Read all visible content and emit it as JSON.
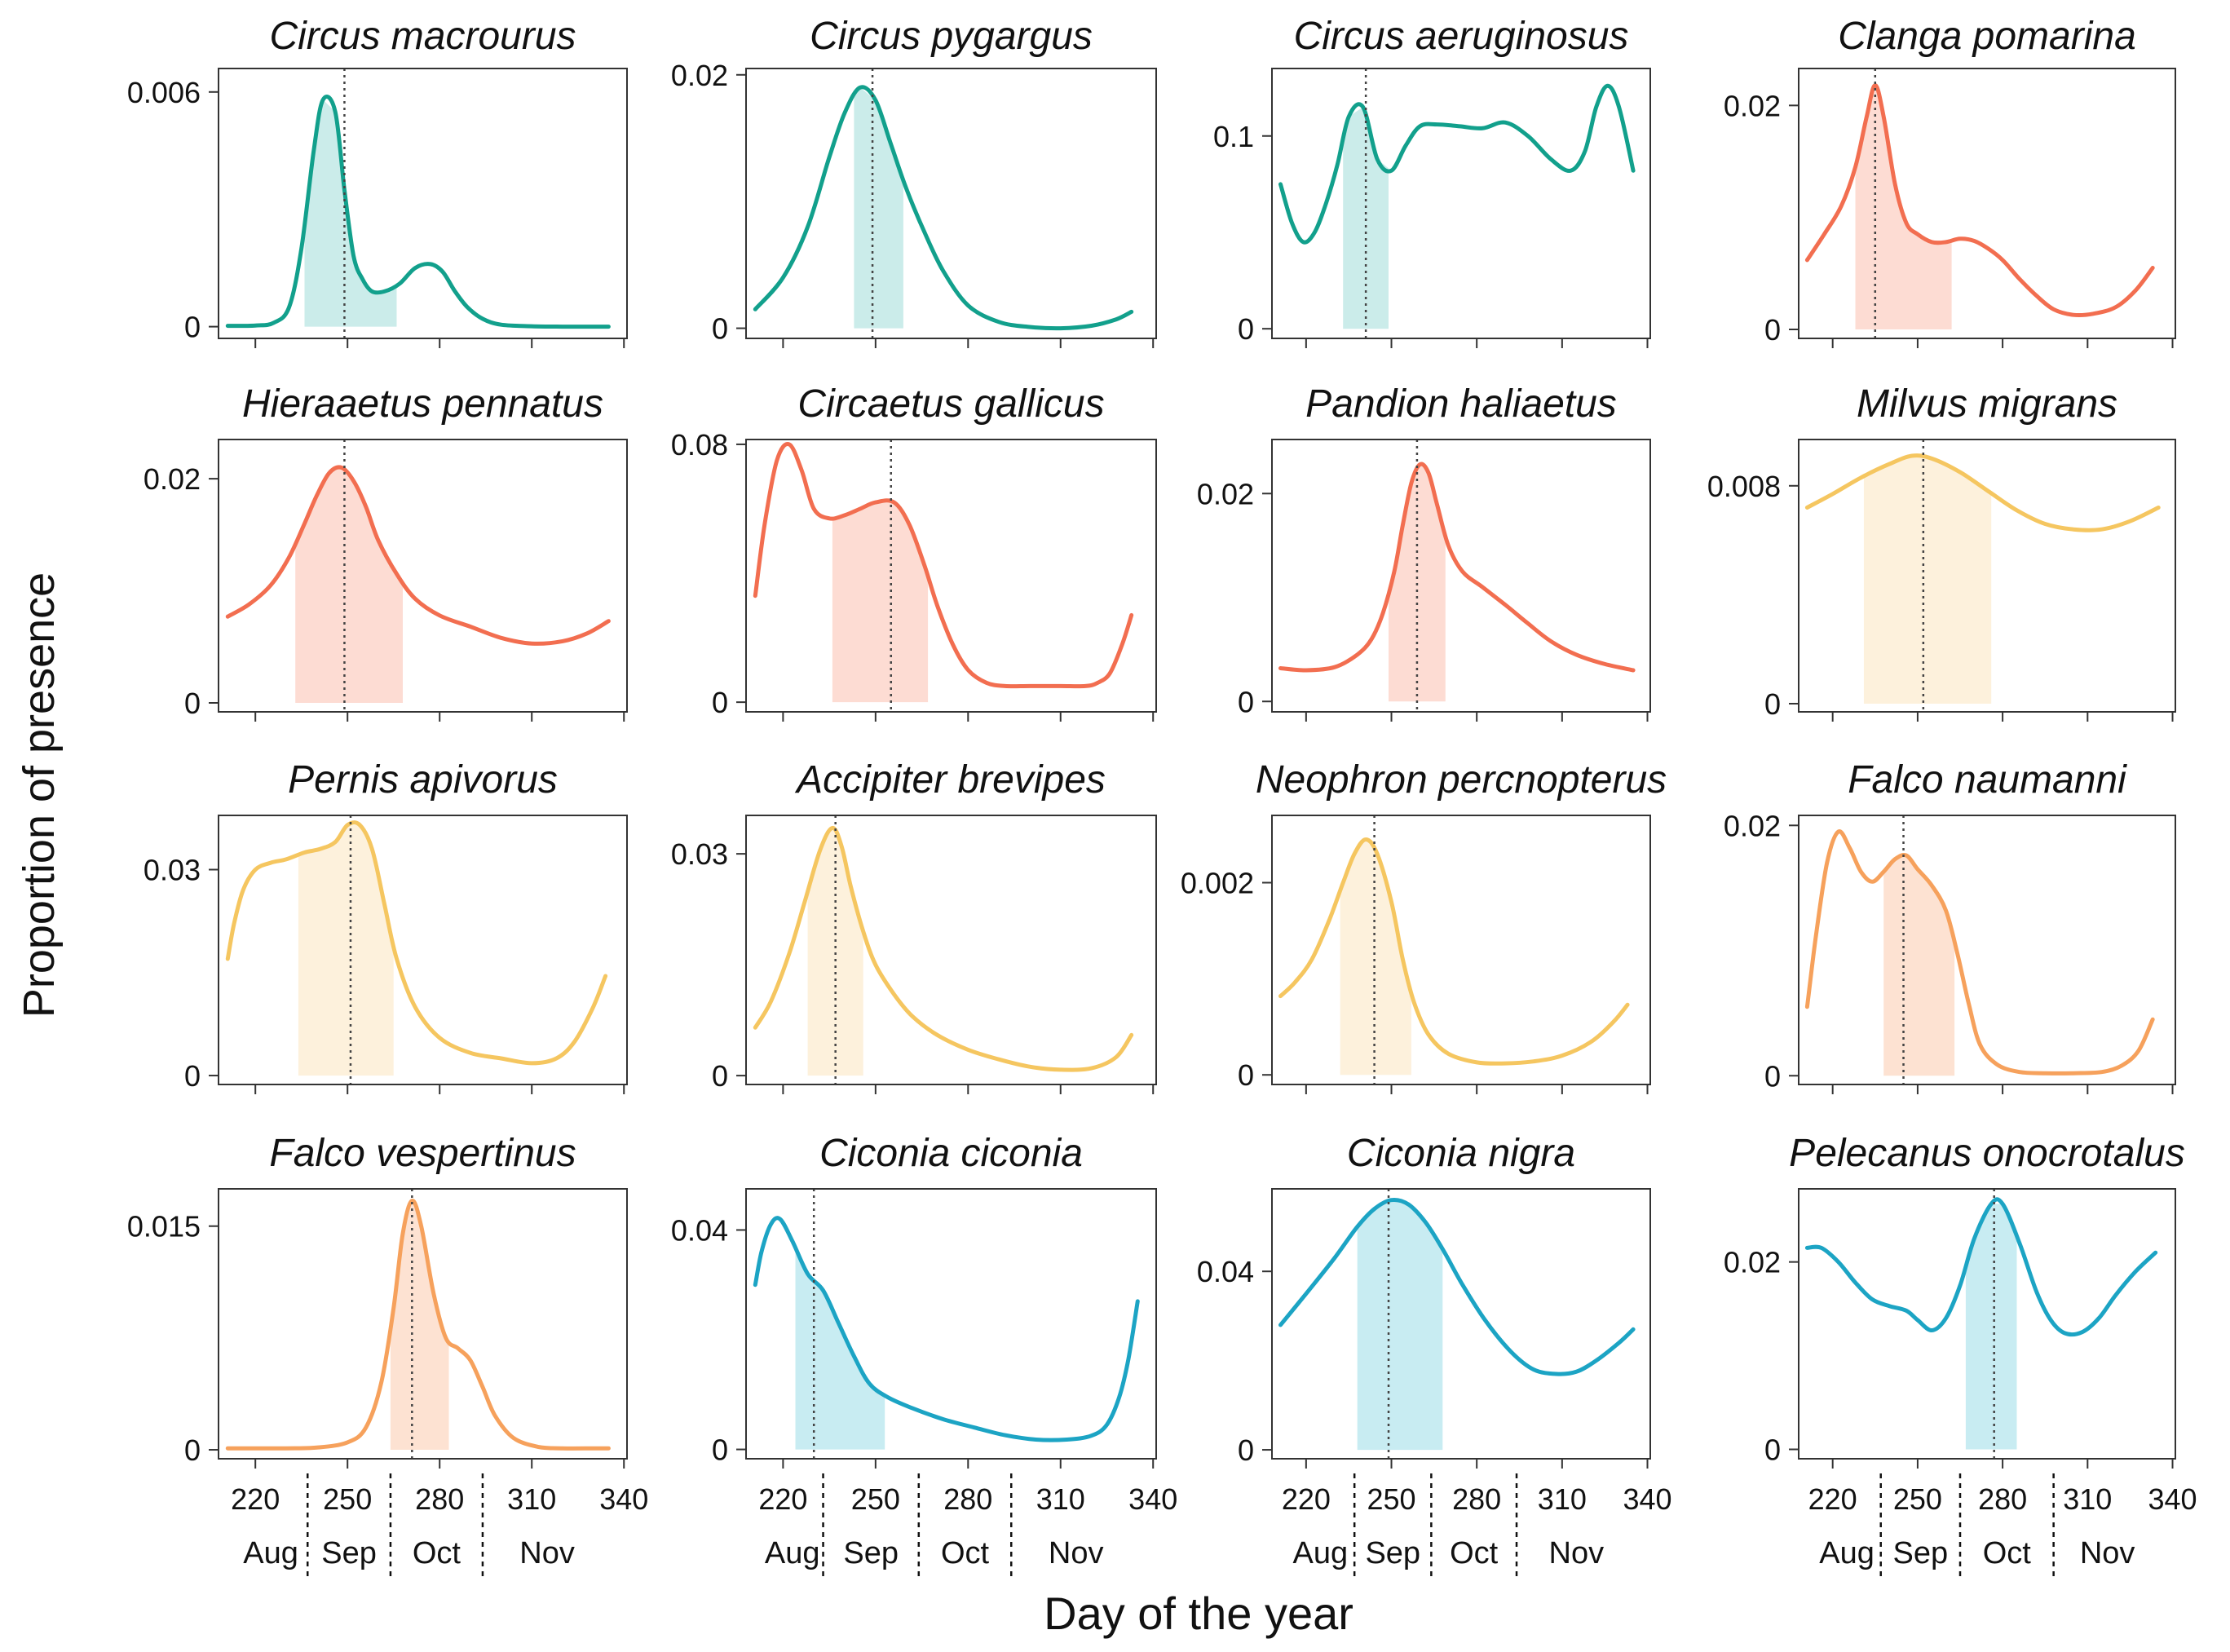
{
  "figure": {
    "ylabel": "Proportion of presence",
    "xlabel": "Day of the year",
    "x_ticks": [
      "220",
      "250",
      "280",
      "310",
      "340"
    ],
    "month_labels": [
      "Aug",
      "Sep",
      "Oct",
      "Nov"
    ]
  },
  "colors": {
    "teal": "#12a08c",
    "teal_fill": "#cbecea",
    "red": "#f26e50",
    "red_fill": "#fddcd3",
    "yellow": "#f5c660",
    "yellow_fill": "#fdf1dc",
    "orange": "#f6a15c",
    "orange_fill": "#fde2d2",
    "blue": "#1ca4c4",
    "blue_fill": "#c8ecf2",
    "axis": "#333333",
    "median_line": "#444444"
  },
  "chart_data": [
    {
      "type": "line",
      "title": "Circus macrourus",
      "xlim": [
        208,
        341
      ],
      "ylim": [
        -0.0003,
        0.0066
      ],
      "yticks": [
        {
          "value": 0,
          "label": "0"
        },
        {
          "value": 0.006,
          "label": "0.006"
        }
      ],
      "x": [
        211,
        220,
        226,
        231,
        235,
        239,
        242,
        246,
        249,
        252,
        255,
        258,
        262,
        267,
        272,
        277,
        281,
        285,
        289,
        294,
        300,
        310,
        320,
        330,
        335
      ],
      "y": [
        2e-05,
        3e-05,
        0.0001,
        0.0005,
        0.002,
        0.0045,
        0.0058,
        0.0055,
        0.0035,
        0.0018,
        0.0012,
        0.0009,
        0.0009,
        0.0011,
        0.0015,
        0.0016,
        0.0014,
        0.0009,
        0.0005,
        0.0002,
        5e-05,
        1e-05,
        0,
        0,
        0
      ],
      "band": [
        236,
        266
      ],
      "median": 249,
      "color": "teal",
      "month_bounds": []
    },
    {
      "type": "line",
      "title": "Circus pygargus",
      "xlim": [
        208,
        341
      ],
      "ylim": [
        -0.0008,
        0.0205
      ],
      "yticks": [
        {
          "value": 0,
          "label": "0"
        },
        {
          "value": 0.02,
          "label": "0.02"
        }
      ],
      "x": [
        211,
        220,
        228,
        235,
        240,
        245,
        250,
        255,
        260,
        266,
        272,
        280,
        290,
        300,
        310,
        320,
        328,
        333
      ],
      "y": [
        0.0015,
        0.004,
        0.008,
        0.0135,
        0.017,
        0.019,
        0.018,
        0.0145,
        0.011,
        0.0075,
        0.0045,
        0.0018,
        0.0005,
        0.0001,
        0,
        0.0002,
        0.0007,
        0.0013
      ],
      "band": [
        243,
        259
      ],
      "median": 249,
      "color": "teal",
      "month_bounds": []
    },
    {
      "type": "line",
      "title": "Circus aeruginosus",
      "xlim": [
        208,
        341
      ],
      "ylim": [
        -0.005,
        0.135
      ],
      "yticks": [
        {
          "value": 0,
          "label": "0"
        },
        {
          "value": 0.1,
          "label": "0.1"
        }
      ],
      "x": [
        211,
        215,
        219,
        223,
        227,
        231,
        235,
        240,
        245,
        250,
        255,
        260,
        266,
        274,
        282,
        290,
        298,
        306,
        313,
        318,
        322,
        326,
        330,
        335
      ],
      "y": [
        0.075,
        0.055,
        0.045,
        0.05,
        0.065,
        0.085,
        0.11,
        0.115,
        0.088,
        0.082,
        0.095,
        0.105,
        0.106,
        0.105,
        0.104,
        0.107,
        0.1,
        0.088,
        0.082,
        0.092,
        0.115,
        0.126,
        0.115,
        0.082
      ],
      "band": [
        233,
        249
      ],
      "median": 241,
      "color": "teal",
      "month_bounds": []
    },
    {
      "type": "line",
      "title": "Clanga pomarina",
      "xlim": [
        208,
        341
      ],
      "ylim": [
        -0.0008,
        0.0233
      ],
      "yticks": [
        {
          "value": 0,
          "label": "0"
        },
        {
          "value": 0.02,
          "label": "0.02"
        }
      ],
      "x": [
        211,
        217,
        223,
        228,
        232,
        235,
        238,
        242,
        246,
        250,
        255,
        260,
        265,
        270,
        275,
        280,
        286,
        292,
        298,
        305,
        312,
        320,
        327,
        333
      ],
      "y": [
        0.0062,
        0.0085,
        0.011,
        0.0145,
        0.019,
        0.0218,
        0.019,
        0.013,
        0.0095,
        0.0085,
        0.0078,
        0.0078,
        0.0081,
        0.0079,
        0.0072,
        0.0062,
        0.0045,
        0.003,
        0.0018,
        0.0013,
        0.0014,
        0.002,
        0.0035,
        0.0055
      ],
      "band": [
        228,
        262
      ],
      "median": 235,
      "color": "red",
      "month_bounds": []
    },
    {
      "type": "line",
      "title": "Hieraaetus pennatus",
      "xlim": [
        208,
        341
      ],
      "ylim": [
        -0.0008,
        0.0235
      ],
      "yticks": [
        {
          "value": 0,
          "label": "0"
        },
        {
          "value": 0.02,
          "label": "0.02"
        }
      ],
      "x": [
        211,
        218,
        225,
        231,
        236,
        240,
        244,
        248,
        252,
        256,
        260,
        266,
        272,
        280,
        290,
        300,
        310,
        320,
        328,
        335
      ],
      "y": [
        0.0077,
        0.0088,
        0.0105,
        0.013,
        0.016,
        0.0185,
        0.0205,
        0.021,
        0.0198,
        0.0175,
        0.0145,
        0.0115,
        0.0093,
        0.0078,
        0.0068,
        0.0058,
        0.0053,
        0.0055,
        0.0062,
        0.0073
      ],
      "band": [
        233,
        268
      ],
      "median": 249,
      "color": "red",
      "month_bounds": []
    },
    {
      "type": "line",
      "title": "Circaetus gallicus",
      "xlim": [
        208,
        341
      ],
      "ylim": [
        -0.003,
        0.0815
      ],
      "yticks": [
        {
          "value": 0,
          "label": "0"
        },
        {
          "value": 0.08,
          "label": "0.08"
        }
      ],
      "x": [
        211,
        214,
        218,
        222,
        226,
        230,
        235,
        240,
        245,
        250,
        256,
        261,
        266,
        270,
        275,
        280,
        286,
        292,
        300,
        310,
        318,
        322,
        326,
        330,
        333
      ],
      "y": [
        0.033,
        0.055,
        0.075,
        0.08,
        0.072,
        0.06,
        0.057,
        0.058,
        0.06,
        0.062,
        0.062,
        0.055,
        0.042,
        0.03,
        0.018,
        0.01,
        0.006,
        0.005,
        0.005,
        0.005,
        0.005,
        0.006,
        0.009,
        0.018,
        0.027
      ],
      "band": [
        236,
        267
      ],
      "median": 255,
      "color": "red",
      "month_bounds": []
    },
    {
      "type": "line",
      "title": "Pandion haliaetus",
      "xlim": [
        208,
        341
      ],
      "ylim": [
        -0.001,
        0.0252
      ],
      "yticks": [
        {
          "value": 0,
          "label": "0"
        },
        {
          "value": 0.02,
          "label": "0.02"
        }
      ],
      "x": [
        211,
        220,
        230,
        238,
        243,
        247,
        251,
        254,
        257,
        260,
        263,
        266,
        270,
        275,
        282,
        290,
        298,
        306,
        315,
        325,
        335
      ],
      "y": [
        0.0032,
        0.003,
        0.0033,
        0.0045,
        0.006,
        0.0085,
        0.0125,
        0.017,
        0.021,
        0.0228,
        0.022,
        0.019,
        0.015,
        0.0125,
        0.011,
        0.0093,
        0.0075,
        0.0058,
        0.0045,
        0.0036,
        0.003
      ],
      "band": [
        249,
        269
      ],
      "median": 259,
      "color": "red",
      "month_bounds": []
    },
    {
      "type": "line",
      "title": "Milvus migrans",
      "xlim": [
        208,
        341
      ],
      "ylim": [
        -0.0003,
        0.0097
      ],
      "yticks": [
        {
          "value": 0,
          "label": "0"
        },
        {
          "value": 0.008,
          "label": "0.008"
        }
      ],
      "x": [
        211,
        220,
        230,
        240,
        248,
        255,
        265,
        275,
        285,
        295,
        305,
        315,
        325,
        335
      ],
      "y": [
        0.0072,
        0.0077,
        0.0083,
        0.0088,
        0.0091,
        0.009,
        0.0085,
        0.0078,
        0.0071,
        0.0066,
        0.0064,
        0.0064,
        0.0067,
        0.0072
      ],
      "band": [
        231,
        276
      ],
      "median": 252,
      "color": "yellow",
      "month_bounds": []
    },
    {
      "type": "line",
      "title": "Pernis apivorus",
      "xlim": [
        208,
        341
      ],
      "ylim": [
        -0.0013,
        0.0379
      ],
      "yticks": [
        {
          "value": 0,
          "label": "0"
        },
        {
          "value": 0.03,
          "label": "0.03"
        }
      ],
      "x": [
        211,
        213,
        216,
        220,
        225,
        230,
        236,
        241,
        246,
        250,
        254,
        258,
        262,
        266,
        272,
        280,
        290,
        300,
        310,
        318,
        324,
        330,
        334
      ],
      "y": [
        0.017,
        0.022,
        0.027,
        0.03,
        0.031,
        0.0315,
        0.0325,
        0.033,
        0.034,
        0.0365,
        0.0365,
        0.033,
        0.025,
        0.017,
        0.01,
        0.0055,
        0.0033,
        0.0025,
        0.0018,
        0.0025,
        0.005,
        0.01,
        0.0145
      ],
      "band": [
        234,
        265
      ],
      "median": 251,
      "color": "yellow",
      "month_bounds": []
    },
    {
      "type": "line",
      "title": "Accipiter brevipes",
      "xlim": [
        208,
        341
      ],
      "ylim": [
        -0.0012,
        0.0352
      ],
      "yticks": [
        {
          "value": 0,
          "label": "0"
        },
        {
          "value": 0.03,
          "label": "0.03"
        }
      ],
      "x": [
        211,
        216,
        222,
        227,
        232,
        236,
        239,
        242,
        246,
        250,
        256,
        262,
        270,
        280,
        290,
        300,
        310,
        320,
        328,
        333
      ],
      "y": [
        0.0065,
        0.01,
        0.0165,
        0.0235,
        0.0305,
        0.0335,
        0.031,
        0.0255,
        0.0195,
        0.015,
        0.011,
        0.008,
        0.0055,
        0.0035,
        0.0022,
        0.0012,
        0.0008,
        0.001,
        0.0025,
        0.0055
      ],
      "band": [
        228,
        246
      ],
      "median": 237,
      "color": "yellow",
      "month_bounds": []
    },
    {
      "type": "line",
      "title": "Neophron percnopterus",
      "xlim": [
        208,
        341
      ],
      "ylim": [
        -0.0001,
        0.0027
      ],
      "yticks": [
        {
          "value": 0,
          "label": "0"
        },
        {
          "value": 0.002,
          "label": "0.002"
        }
      ],
      "x": [
        211,
        216,
        222,
        228,
        233,
        237,
        241,
        245,
        250,
        254,
        258,
        263,
        270,
        280,
        290,
        300,
        310,
        320,
        328,
        333
      ],
      "y": [
        0.00082,
        0.00096,
        0.0012,
        0.0016,
        0.002,
        0.0023,
        0.00245,
        0.0023,
        0.0018,
        0.0012,
        0.00075,
        0.00042,
        0.00022,
        0.00013,
        0.00012,
        0.00014,
        0.0002,
        0.00034,
        0.00055,
        0.00073
      ],
      "band": [
        232,
        257
      ],
      "median": 244,
      "color": "yellow",
      "month_bounds": []
    },
    {
      "type": "line",
      "title": "Falco naumanni",
      "xlim": [
        208,
        341
      ],
      "ylim": [
        -0.0007,
        0.0208
      ],
      "yticks": [
        {
          "value": 0,
          "label": "0"
        },
        {
          "value": 0.02,
          "label": "0.02"
        }
      ],
      "x": [
        211,
        214,
        218,
        222,
        226,
        230,
        234,
        238,
        242,
        246,
        250,
        255,
        260,
        264,
        268,
        272,
        278,
        286,
        295,
        305,
        315,
        322,
        328,
        333
      ],
      "y": [
        0.0055,
        0.011,
        0.017,
        0.0195,
        0.0182,
        0.0163,
        0.0155,
        0.0163,
        0.0173,
        0.0176,
        0.0165,
        0.0152,
        0.0132,
        0.0098,
        0.0058,
        0.0025,
        0.0009,
        0.0003,
        0.0002,
        0.0002,
        0.0003,
        0.0008,
        0.002,
        0.0045
      ],
      "band": [
        238,
        263
      ],
      "median": 245,
      "color": "orange",
      "month_bounds": []
    },
    {
      "type": "line",
      "title": "Falco vespertinus",
      "xlim": [
        208,
        341
      ],
      "ylim": [
        -0.0006,
        0.0175
      ],
      "yticks": [
        {
          "value": 0,
          "label": "0"
        },
        {
          "value": 0.015,
          "label": "0.015"
        }
      ],
      "x": [
        211,
        220,
        230,
        240,
        250,
        256,
        261,
        265,
        268,
        271,
        274,
        278,
        282,
        286,
        290,
        294,
        298,
        304,
        312,
        320,
        330,
        335
      ],
      "y": [
        0.0001,
        0.0001,
        0.0001,
        0.00015,
        0.0005,
        0.0015,
        0.0045,
        0.0095,
        0.0145,
        0.0167,
        0.015,
        0.0105,
        0.0075,
        0.0068,
        0.006,
        0.0042,
        0.0023,
        0.0008,
        0.0002,
        0.0001,
        0.0001,
        0.0001
      ],
      "band": [
        264,
        283
      ],
      "median": 271,
      "color": "orange",
      "month_bounds": [
        237,
        264,
        294
      ]
    },
    {
      "type": "line",
      "title": "Ciconia ciconia",
      "xlim": [
        208,
        341
      ],
      "ylim": [
        -0.0017,
        0.0475
      ],
      "yticks": [
        {
          "value": 0,
          "label": "0"
        },
        {
          "value": 0.04,
          "label": "0.04"
        }
      ],
      "x": [
        211,
        213,
        216,
        219,
        223,
        228,
        233,
        238,
        243,
        248,
        254,
        262,
        272,
        282,
        292,
        302,
        312,
        320,
        325,
        329,
        332,
        335
      ],
      "y": [
        0.03,
        0.036,
        0.041,
        0.042,
        0.038,
        0.032,
        0.029,
        0.023,
        0.017,
        0.012,
        0.0095,
        0.0075,
        0.0055,
        0.004,
        0.0026,
        0.0018,
        0.0018,
        0.0025,
        0.0045,
        0.0095,
        0.0165,
        0.027
      ],
      "band": [
        224,
        253
      ],
      "median": 230,
      "color": "blue",
      "month_bounds": [
        233,
        264,
        294
      ]
    },
    {
      "type": "line",
      "title": "Ciconia nigra",
      "xlim": [
        208,
        341
      ],
      "ylim": [
        -0.002,
        0.0585
      ],
      "yticks": [
        {
          "value": 0,
          "label": "0"
        },
        {
          "value": 0.04,
          "label": "0.04"
        }
      ],
      "x": [
        211,
        220,
        230,
        238,
        244,
        250,
        256,
        262,
        268,
        275,
        283,
        292,
        300,
        308,
        315,
        322,
        330,
        335
      ],
      "y": [
        0.028,
        0.035,
        0.043,
        0.05,
        0.054,
        0.056,
        0.055,
        0.051,
        0.045,
        0.037,
        0.029,
        0.022,
        0.018,
        0.017,
        0.0175,
        0.02,
        0.024,
        0.027
      ],
      "band": [
        238,
        268
      ],
      "median": 249,
      "color": "blue",
      "month_bounds": [
        237,
        264,
        294
      ]
    },
    {
      "type": "line",
      "title": "Pelecanus onocrotalus",
      "xlim": [
        208,
        341
      ],
      "ylim": [
        -0.001,
        0.0278
      ],
      "yticks": [
        {
          "value": 0,
          "label": "0"
        },
        {
          "value": 0.02,
          "label": "0.02"
        }
      ],
      "x": [
        211,
        216,
        222,
        228,
        234,
        240,
        246,
        250,
        255,
        260,
        265,
        270,
        276,
        280,
        286,
        292,
        297,
        302,
        308,
        314,
        320,
        327,
        334
      ],
      "y": [
        0.0215,
        0.0215,
        0.02,
        0.0178,
        0.016,
        0.0153,
        0.0148,
        0.0138,
        0.0127,
        0.014,
        0.0175,
        0.0225,
        0.0262,
        0.0262,
        0.022,
        0.0168,
        0.0138,
        0.0124,
        0.0125,
        0.014,
        0.0165,
        0.019,
        0.021
      ],
      "band": [
        267,
        285
      ],
      "median": 277,
      "color": "blue",
      "month_bounds": [
        237,
        265,
        298
      ]
    }
  ]
}
